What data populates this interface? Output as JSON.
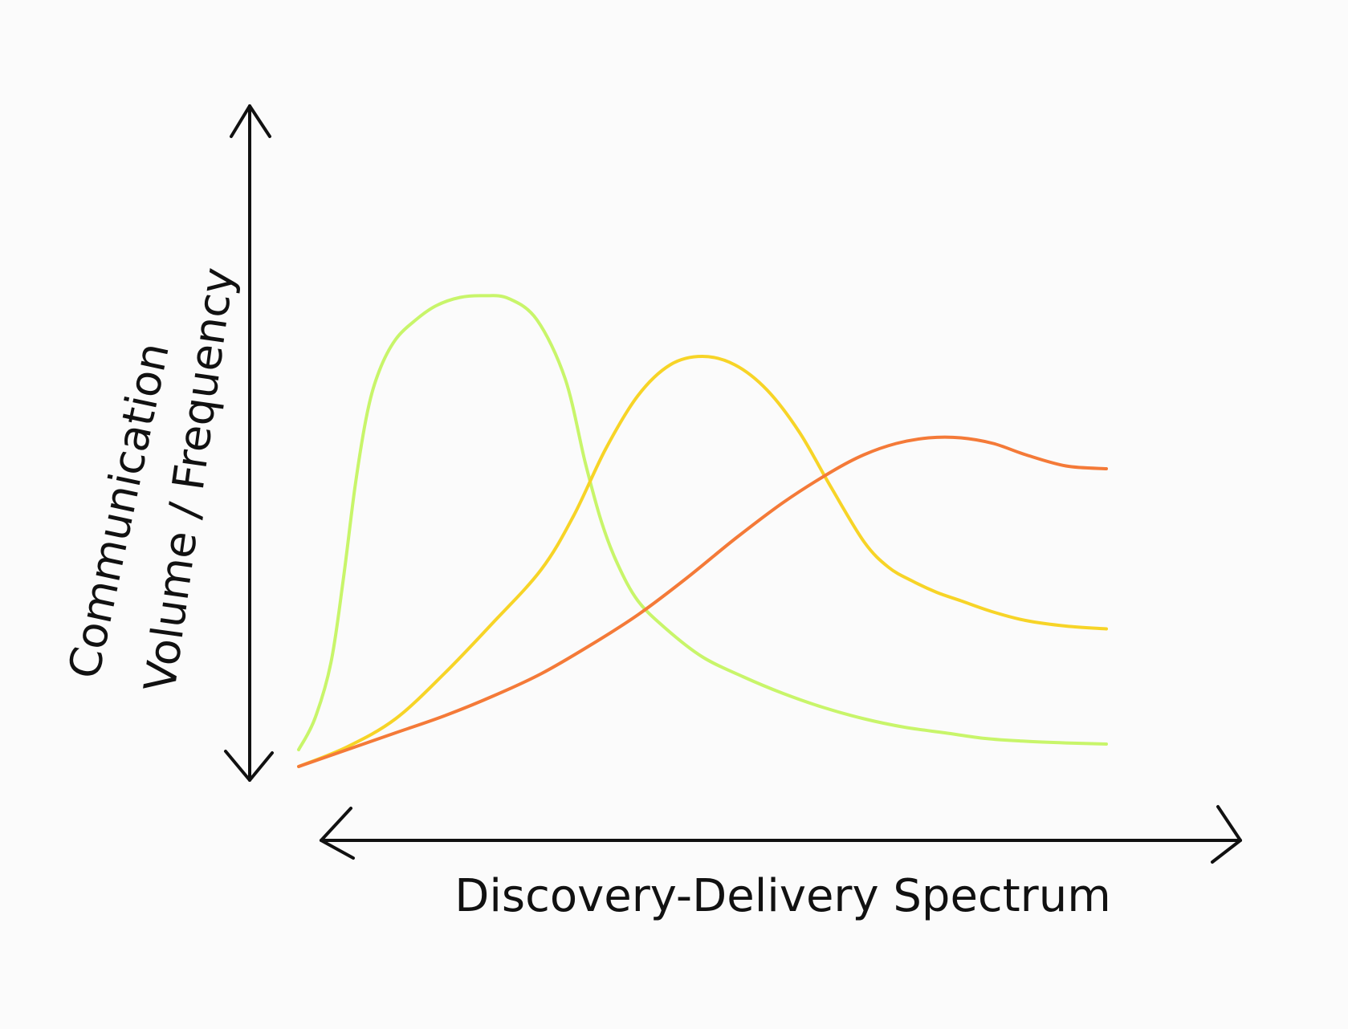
{
  "chart_data": {
    "type": "line",
    "title": "",
    "xlabel": "Discovery-Delivery Spectrum",
    "ylabel_lines": [
      "Communication",
      "Volume / Frequency"
    ],
    "x_arrow": "both",
    "y_arrow": "both",
    "xlim": [
      0,
      10
    ],
    "ylim": [
      0,
      10
    ],
    "grid": false,
    "legend": "none",
    "series": [
      {
        "color": "#c8f56a",
        "x": [
          0.0,
          0.2,
          0.4,
          0.55,
          0.7,
          0.85,
          1.0,
          1.2,
          1.45,
          1.7,
          2.0,
          2.3,
          2.6,
          2.95,
          3.3,
          3.55,
          3.75,
          3.95,
          4.2,
          4.55,
          5.0,
          5.5,
          6.0,
          6.5,
          7.0,
          7.5,
          8.0,
          8.5,
          9.0,
          9.5,
          10.0
        ],
        "y": [
          0.3,
          0.85,
          1.85,
          3.3,
          5.0,
          6.3,
          7.05,
          7.6,
          7.95,
          8.2,
          8.35,
          8.38,
          8.33,
          7.95,
          6.9,
          5.4,
          4.35,
          3.6,
          2.95,
          2.45,
          1.95,
          1.6,
          1.3,
          1.05,
          0.85,
          0.7,
          0.6,
          0.5,
          0.45,
          0.42,
          0.4
        ]
      },
      {
        "color": "#f7d427",
        "x": [
          0.0,
          0.6,
          1.2,
          1.8,
          2.4,
          3.0,
          3.4,
          3.8,
          4.2,
          4.6,
          5.0,
          5.4,
          5.8,
          6.2,
          6.6,
          7.0,
          7.3,
          7.6,
          7.9,
          8.2,
          8.6,
          9.0,
          9.5,
          10.0
        ],
        "y": [
          0.0,
          0.35,
          0.85,
          1.65,
          2.55,
          3.5,
          4.45,
          5.65,
          6.6,
          7.15,
          7.3,
          7.15,
          6.7,
          5.95,
          4.95,
          4.0,
          3.55,
          3.3,
          3.1,
          2.95,
          2.75,
          2.6,
          2.5,
          2.45
        ]
      },
      {
        "color": "#f47a38",
        "x": [
          0.0,
          0.6,
          1.2,
          1.8,
          2.4,
          3.0,
          3.6,
          4.2,
          4.8,
          5.4,
          6.0,
          6.6,
          7.0,
          7.4,
          7.8,
          8.2,
          8.6,
          9.0,
          9.5,
          10.0
        ],
        "y": [
          0.0,
          0.3,
          0.6,
          0.9,
          1.25,
          1.65,
          2.15,
          2.7,
          3.35,
          4.05,
          4.7,
          5.25,
          5.55,
          5.75,
          5.85,
          5.85,
          5.75,
          5.55,
          5.35,
          5.3
        ]
      }
    ]
  }
}
